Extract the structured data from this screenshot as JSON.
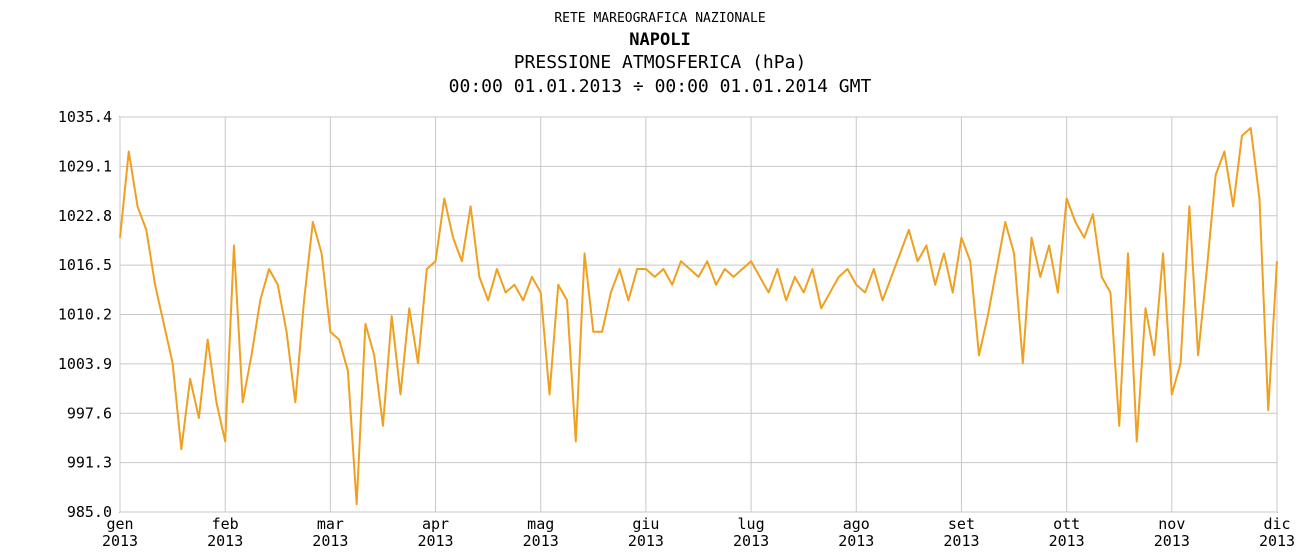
{
  "chart_data": {
    "type": "line",
    "header": "RETE MAREOGRAFICA NAZIONALE",
    "title": "NAPOLI",
    "subtitle": "PRESSIONE ATMOSFERICA (hPa)",
    "period": "00:00 01.01.2013 ÷ 00:00 01.01.2014 GMT",
    "grid": true,
    "xlim": [
      0,
      132
    ],
    "xticks": [
      {
        "value": 0,
        "label": "gen 2013"
      },
      {
        "value": 12,
        "label": "feb 2013"
      },
      {
        "value": 24,
        "label": "mar 2013"
      },
      {
        "value": 36,
        "label": "apr 2013"
      },
      {
        "value": 48,
        "label": "mag 2013"
      },
      {
        "value": 60,
        "label": "giu 2013"
      },
      {
        "value": 72,
        "label": "lug 2013"
      },
      {
        "value": 84,
        "label": "ago 2013"
      },
      {
        "value": 96,
        "label": "set 2013"
      },
      {
        "value": 108,
        "label": "ott 2013"
      },
      {
        "value": 120,
        "label": "nov 2013"
      },
      {
        "value": 132,
        "label": "dic 2013"
      }
    ],
    "ylim": [
      985,
      1035.4
    ],
    "yticks": [
      {
        "value": 985,
        "label": "985.0"
      },
      991.3,
      997.6,
      1003.9,
      1010.2,
      1016.5,
      1022.8,
      1029.1,
      1035.4
    ],
    "series": [
      {
        "color": "#f0a020",
        "x": [
          0,
          1,
          2,
          3,
          4,
          5,
          6,
          7,
          8,
          9,
          10,
          11,
          12,
          13,
          14,
          15,
          16,
          17,
          18,
          19,
          20,
          21,
          22,
          23,
          24,
          25,
          26,
          27,
          28,
          29,
          30,
          31,
          32,
          33,
          34,
          35,
          36,
          37,
          38,
          39,
          40,
          41,
          42,
          43,
          44,
          45,
          46,
          47,
          48,
          49,
          50,
          51,
          52,
          53,
          54,
          55,
          56,
          57,
          58,
          59,
          60,
          61,
          62,
          63,
          64,
          65,
          66,
          67,
          68,
          69,
          70,
          71,
          72,
          73,
          74,
          75,
          76,
          77,
          78,
          79,
          80,
          81,
          82,
          83,
          84,
          85,
          86,
          87,
          88,
          89,
          90,
          91,
          92,
          93,
          94,
          95,
          96,
          97,
          98,
          99,
          100,
          101,
          102,
          103,
          104,
          105,
          106,
          107,
          108,
          109,
          110,
          111,
          112,
          113,
          114,
          115,
          116,
          117,
          118,
          119,
          120,
          121,
          122,
          123,
          124,
          125,
          126,
          127,
          128,
          129,
          130,
          131,
          132
        ],
        "values": [
          1020,
          1031,
          1024,
          1021,
          1014,
          1009,
          1004,
          993,
          1002,
          997,
          1007,
          999,
          994,
          1019,
          999,
          1005,
          1012,
          1016,
          1014,
          1008,
          999,
          1012,
          1022,
          1018,
          1008,
          1007,
          1003,
          986,
          1009,
          1005,
          996,
          1010,
          1000,
          1011,
          1004,
          1016,
          1017,
          1025,
          1020,
          1017,
          1024,
          1015,
          1012,
          1016,
          1013,
          1014,
          1012,
          1015,
          1013,
          1000,
          1014,
          1012,
          994,
          1018,
          1008,
          1008,
          1013,
          1016,
          1012,
          1016,
          1016,
          1015,
          1016,
          1014,
          1017,
          1016,
          1015,
          1017,
          1014,
          1016,
          1015,
          1016,
          1017,
          1015,
          1013,
          1016,
          1012,
          1015,
          1013,
          1016,
          1011,
          1013,
          1015,
          1016,
          1014,
          1013,
          1016,
          1012,
          1015,
          1018,
          1021,
          1017,
          1019,
          1014,
          1018,
          1013,
          1020,
          1017,
          1005,
          1010,
          1016,
          1022,
          1018,
          1004,
          1020,
          1015,
          1019,
          1013,
          1025,
          1022,
          1020,
          1023,
          1015,
          1013,
          996,
          1018,
          994,
          1011,
          1005,
          1018,
          1000,
          1004,
          1024,
          1005,
          1016,
          1028,
          1031,
          1024,
          1033,
          1034,
          1025,
          998,
          1017
        ]
      }
    ]
  }
}
